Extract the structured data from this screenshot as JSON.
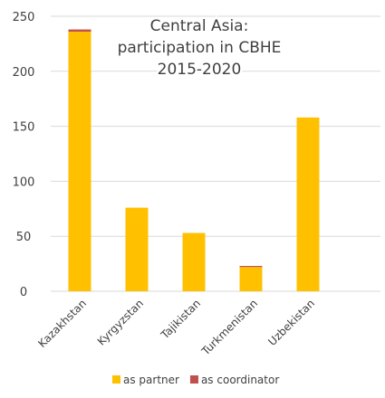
{
  "chart_data": {
    "type": "bar",
    "stacked": true,
    "title_lines": [
      "Central Asia:",
      "participation in CBHE",
      "2015-2020"
    ],
    "categories": [
      "Kazakhstan",
      "Kyrgyzstan",
      "Tajikistan",
      "Turkmenistan",
      "Uzbekistan"
    ],
    "series": [
      {
        "name": "as partner",
        "color": "#FFC000",
        "values": [
          236,
          76,
          53,
          22,
          158
        ]
      },
      {
        "name": "as coordinator",
        "color": "#C0504D",
        "values": [
          2,
          0,
          0,
          1,
          0
        ]
      }
    ],
    "y_ticks": [
      "0",
      "50",
      "100",
      "150",
      "200",
      "250"
    ],
    "ylim": [
      0,
      250
    ],
    "grid": true,
    "legend_position": "bottom"
  }
}
